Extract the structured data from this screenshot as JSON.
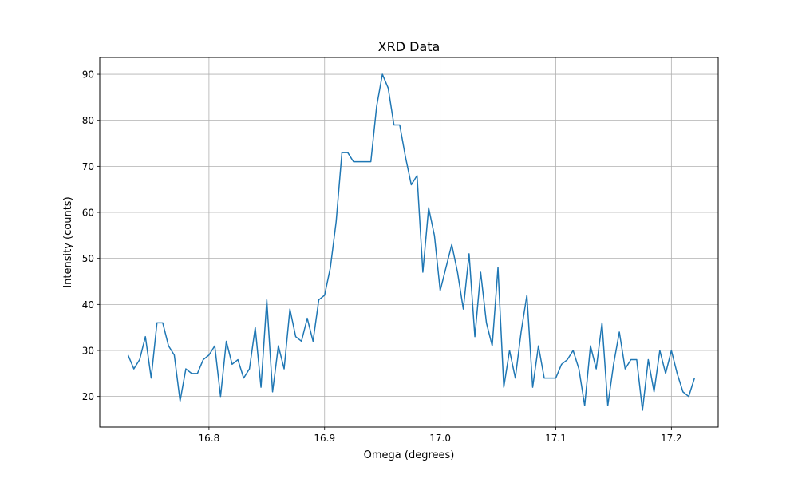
{
  "chart_data": {
    "type": "line",
    "title": "XRD Data",
    "xlabel": "Omega (degrees)",
    "ylabel": "Intensity (counts)",
    "xlim": [
      16.7055,
      17.2405
    ],
    "ylim": [
      13.35,
      93.65
    ],
    "xticks": [
      16.8,
      16.9,
      17.0,
      17.1,
      17.2
    ],
    "xtick_labels": [
      "16.8",
      "16.9",
      "17.0",
      "17.1",
      "17.2"
    ],
    "yticks": [
      20,
      30,
      40,
      50,
      60,
      70,
      80,
      90
    ],
    "ytick_labels": [
      "20",
      "30",
      "40",
      "50",
      "60",
      "70",
      "80",
      "90"
    ],
    "grid": true,
    "series": [
      {
        "color": "#1f77b4",
        "x": [
          16.73,
          16.735,
          16.74,
          16.745,
          16.75,
          16.755,
          16.76,
          16.765,
          16.77,
          16.775,
          16.78,
          16.785,
          16.79,
          16.795,
          16.8,
          16.805,
          16.81,
          16.815,
          16.82,
          16.825,
          16.83,
          16.835,
          16.84,
          16.845,
          16.85,
          16.855,
          16.86,
          16.865,
          16.87,
          16.875,
          16.88,
          16.885,
          16.89,
          16.895,
          16.9,
          16.905,
          16.91,
          16.915,
          16.92,
          16.925,
          16.93,
          16.935,
          16.94,
          16.945,
          16.95,
          16.955,
          16.96,
          16.965,
          16.97,
          16.975,
          16.98,
          16.985,
          16.99,
          16.995,
          17.0,
          17.005,
          17.01,
          17.015,
          17.02,
          17.025,
          17.03,
          17.035,
          17.04,
          17.045,
          17.05,
          17.055,
          17.06,
          17.065,
          17.07,
          17.075,
          17.08,
          17.085,
          17.09,
          17.095,
          17.1,
          17.105,
          17.11,
          17.115,
          17.12,
          17.125,
          17.13,
          17.135,
          17.14,
          17.145,
          17.15,
          17.155,
          17.16,
          17.165,
          17.17,
          17.175,
          17.18,
          17.185,
          17.19,
          17.195,
          17.2,
          17.205,
          17.21,
          17.215,
          17.22
        ],
        "y": [
          29,
          26,
          28,
          33,
          24,
          36,
          36,
          31,
          29,
          19,
          26,
          25,
          25,
          28,
          29,
          31,
          20,
          32,
          27,
          28,
          24,
          26,
          35,
          22,
          41,
          21,
          31,
          26,
          39,
          33,
          32,
          37,
          32,
          41,
          42,
          48,
          58,
          73,
          73,
          71,
          71,
          71,
          71,
          83,
          90,
          87,
          79,
          79,
          72,
          66,
          68,
          47,
          61,
          55,
          43,
          48,
          53,
          47,
          39,
          51,
          33,
          47,
          36,
          31,
          48,
          22,
          30,
          24,
          34,
          42,
          22,
          31,
          24,
          24,
          24,
          27,
          28,
          30,
          26,
          18,
          31,
          26,
          36,
          18,
          27,
          34,
          26,
          28,
          28,
          17,
          28,
          21,
          30,
          25,
          30,
          25,
          21,
          20,
          24
        ]
      }
    ]
  }
}
